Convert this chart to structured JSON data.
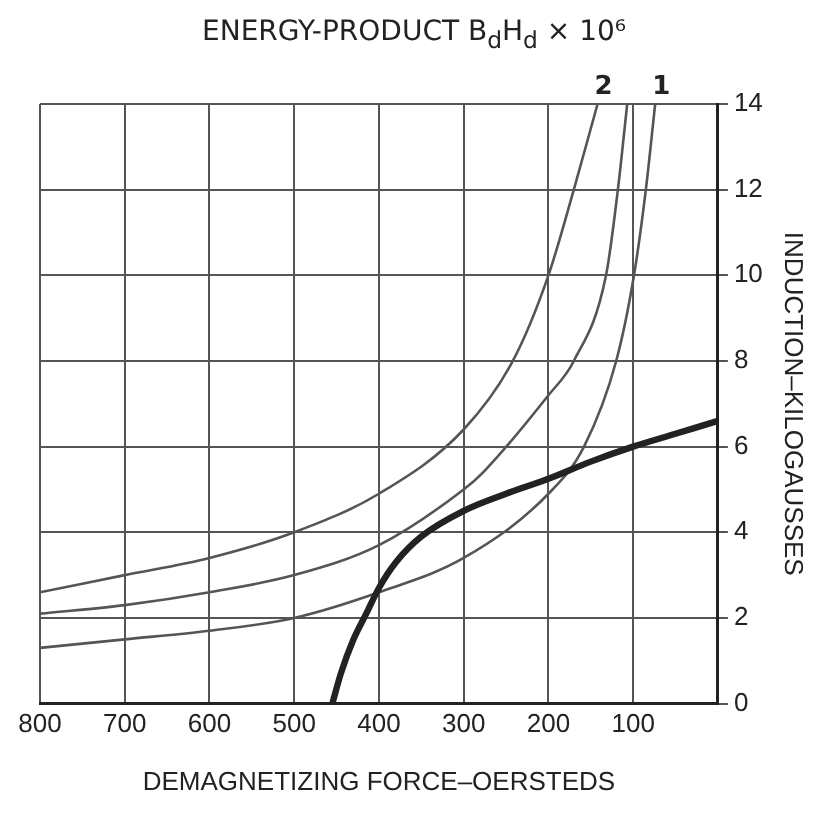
{
  "chart_data": {
    "type": "line",
    "title": "ENERGY-PRODUCT B$_{d}$H$_{d}$ × 10⁶",
    "xlabel": "DEMAGNETIZING FORCE–OERSTEDS",
    "ylabel": "INDUCTION–KILOGAUSSES",
    "xlim": [
      800,
      0
    ],
    "ylim": [
      0,
      14
    ],
    "xticks": [
      800,
      700,
      600,
      500,
      400,
      300,
      200,
      100,
      {
        "value": 0,
        "label": null
      }
    ],
    "yticks": [
      0,
      2,
      4,
      6,
      8,
      10,
      12,
      14
    ],
    "grid": true,
    "marker": "none",
    "line_style": "solid",
    "series": [
      {
        "color": "#222222",
        "x": [
          455,
          445,
          430,
          415,
          400,
          380,
          350,
          300,
          250,
          200,
          150,
          100,
          50,
          0
        ],
        "values": [
          0,
          0.7,
          1.5,
          2.1,
          2.7,
          3.3,
          3.9,
          4.5,
          4.9,
          5.25,
          5.65,
          6.0,
          6.3,
          6.6
        ]
      },
      {
        "name": "2",
        "color": "#555555",
        "x": [
          800,
          700,
          600,
          500,
          400,
          300,
          242,
          200,
          170,
          142
        ],
        "values": [
          2.6,
          3.0,
          3.4,
          4.0,
          4.9,
          6.4,
          8.0,
          10.0,
          12.0,
          14.0
        ]
      },
      {
        "color": "#555555",
        "x": [
          800,
          700,
          600,
          500,
          400,
          300,
          277,
          200,
          170,
          132,
          118,
          107
        ],
        "values": [
          2.1,
          2.3,
          2.6,
          3.0,
          3.7,
          5.0,
          5.4,
          7.2,
          8.0,
          10.0,
          12.0,
          14.0
        ]
      },
      {
        "name": "1",
        "color": "#555555",
        "x": [
          800,
          700,
          600,
          500,
          400,
          300,
          200,
          158,
          120,
          99,
          85,
          74
        ],
        "values": [
          1.3,
          1.5,
          1.7,
          2.0,
          2.6,
          3.4,
          4.9,
          6.0,
          8.0,
          10.0,
          12.0,
          14.0
        ]
      }
    ]
  }
}
